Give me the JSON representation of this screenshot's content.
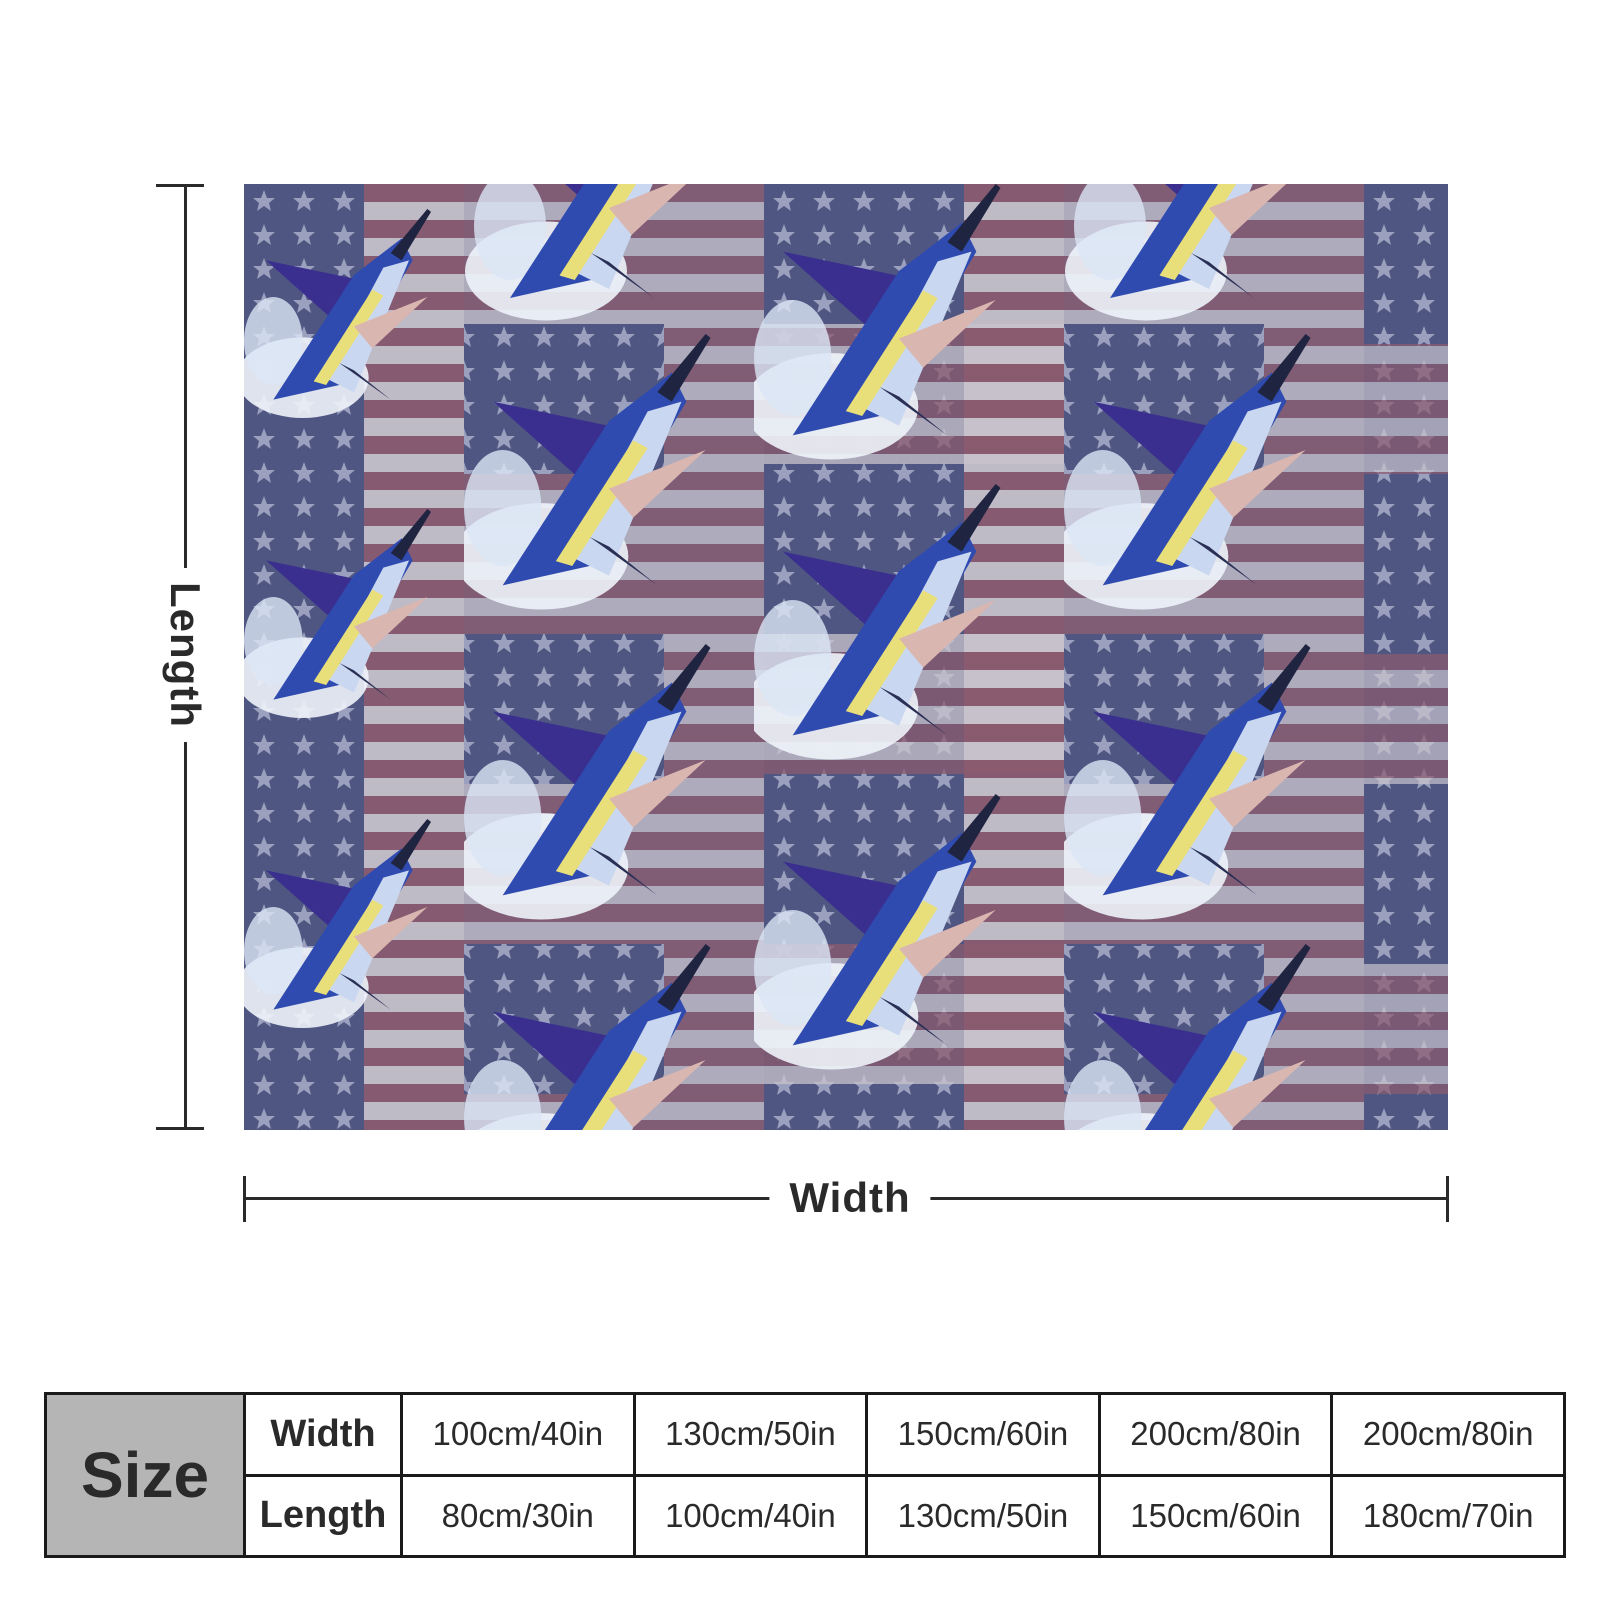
{
  "diagram": {
    "length_label": "Length",
    "width_label": "Width"
  },
  "size_table": {
    "header": "Size",
    "rows": [
      {
        "label": "Width",
        "values": [
          "100cm/40in",
          "130cm/50in",
          "150cm/60in",
          "200cm/80in",
          "200cm/80in"
        ]
      },
      {
        "label": "Length",
        "values": [
          "80cm/30in",
          "100cm/40in",
          "130cm/50in",
          "150cm/60in",
          "180cm/70in"
        ]
      }
    ]
  },
  "colors": {
    "navy": "#4a5079",
    "stripe_red": "#8b5a6e",
    "stripe_light": "#c9c3cd",
    "marlin_blue": "#2f4bb0",
    "marlin_yellow": "#e8df7a",
    "splash_white": "#eef3fa"
  }
}
